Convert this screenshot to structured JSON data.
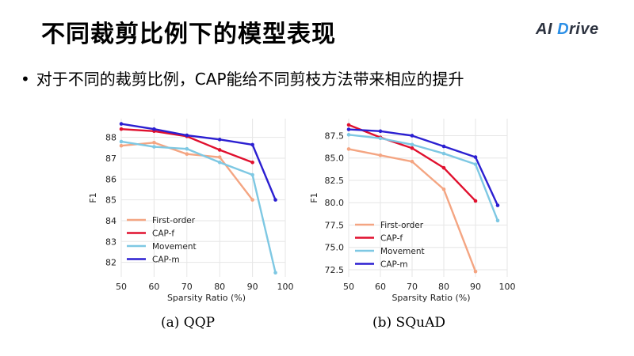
{
  "slide": {
    "title": "不同裁剪比例下的模型表现",
    "logo": {
      "prefix": "AI ",
      "mark": "D",
      "suffix": "rive"
    },
    "bullet": "对于不同的裁剪比例，CAP能给不同剪枝方法带来相应的提升",
    "bullet_symbol": "•"
  },
  "colors": {
    "First-order": "#f4a582",
    "CAP-f": "#e0102e",
    "Movement": "#7ec8e3",
    "CAP-m": "#2b1fd1",
    "grid": "#e6e6e6"
  },
  "chart_data": [
    {
      "type": "line",
      "caption": "(a) QQP",
      "xlabel": "Sparsity Ratio (%)",
      "ylabel": "F1",
      "xlim": [
        50,
        100
      ],
      "ylim": [
        81.3,
        88.9
      ],
      "xticks": [
        50,
        60,
        70,
        80,
        90,
        100
      ],
      "yticks": [
        82,
        83,
        84,
        85,
        86,
        87,
        88
      ],
      "grid": true,
      "legend_position": "lower-left",
      "series": [
        {
          "name": "First-order",
          "x": [
            50,
            60,
            70,
            80,
            90
          ],
          "y": [
            87.6,
            87.75,
            87.2,
            87.05,
            85.0
          ]
        },
        {
          "name": "CAP-f",
          "x": [
            50,
            60,
            70,
            80,
            90
          ],
          "y": [
            88.4,
            88.3,
            88.05,
            87.4,
            86.8
          ]
        },
        {
          "name": "Movement",
          "x": [
            50,
            60,
            70,
            80,
            90,
            97
          ],
          "y": [
            87.8,
            87.55,
            87.45,
            86.8,
            86.2,
            81.5
          ]
        },
        {
          "name": "CAP-m",
          "x": [
            50,
            60,
            70,
            80,
            90,
            97
          ],
          "y": [
            88.65,
            88.4,
            88.1,
            87.9,
            87.65,
            85.0
          ]
        }
      ]
    },
    {
      "type": "line",
      "caption": "(b) SQuAD",
      "xlabel": "Sparsity Ratio (%)",
      "ylabel": "F1",
      "xlim": [
        50,
        100
      ],
      "ylim": [
        71.7,
        89.4
      ],
      "xticks": [
        50,
        60,
        70,
        80,
        90,
        100
      ],
      "yticks": [
        72.5,
        75.0,
        77.5,
        80.0,
        82.5,
        85.0,
        87.5
      ],
      "ytick_labels": [
        "72.5",
        "75.0",
        "77.5",
        "80.0",
        "82.5",
        "85.0",
        "87.5"
      ],
      "grid": true,
      "legend_position": "lower-left",
      "series": [
        {
          "name": "First-order",
          "x": [
            50,
            60,
            70,
            80,
            90
          ],
          "y": [
            86.0,
            85.3,
            84.6,
            81.5,
            72.3
          ]
        },
        {
          "name": "CAP-f",
          "x": [
            50,
            60,
            70,
            80,
            90
          ],
          "y": [
            88.7,
            87.3,
            86.1,
            83.9,
            80.2
          ]
        },
        {
          "name": "Movement",
          "x": [
            50,
            60,
            70,
            80,
            90,
            97
          ],
          "y": [
            87.6,
            87.2,
            86.5,
            85.5,
            84.3,
            78.0
          ]
        },
        {
          "name": "CAP-m",
          "x": [
            50,
            60,
            70,
            80,
            90,
            97
          ],
          "y": [
            88.2,
            88.0,
            87.5,
            86.3,
            85.1,
            79.7
          ]
        }
      ]
    }
  ]
}
